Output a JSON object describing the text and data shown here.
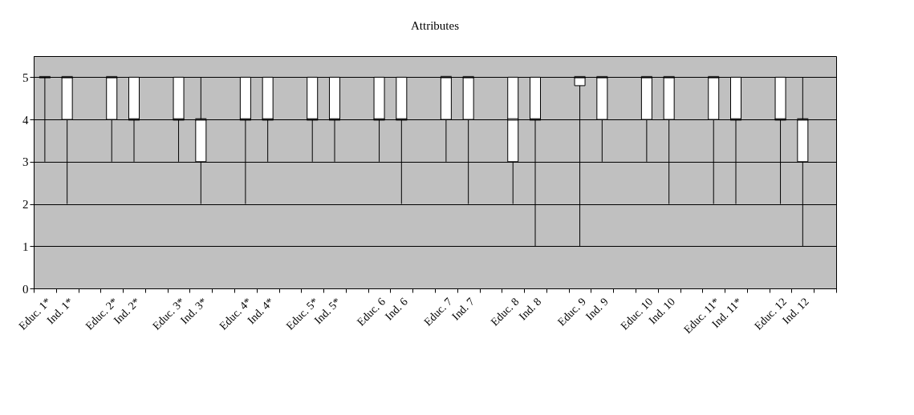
{
  "chart_data": {
    "type": "box",
    "title": "Attributes",
    "categories": [
      "Educ. 1*",
      "Ind. 1*",
      null,
      "Educ. 2*",
      "Ind. 2*",
      null,
      "Educ. 3*",
      "Ind. 3*",
      null,
      "Educ. 4*",
      "Ind. 4*",
      null,
      "Educ. 5*",
      "Ind. 5*",
      null,
      "Educ. 6",
      "Ind. 6",
      null,
      "Educ. 7",
      "Ind. 7",
      null,
      "Educ. 8",
      "Ind. 8",
      null,
      "Educ. 9",
      "Ind. 9",
      null,
      "Educ. 10",
      "Ind. 10",
      null,
      "Educ. 11*",
      "Ind. 11*",
      null,
      "Educ. 12",
      "Ind. 12",
      null
    ],
    "boxes": [
      {
        "low": 3,
        "q1": 5,
        "median": 5,
        "q3": 5,
        "high": 5
      },
      {
        "low": 2,
        "q1": 4,
        "median": 5,
        "q3": 5,
        "high": 5
      },
      null,
      {
        "low": 3,
        "q1": 4,
        "median": 5,
        "q3": 5,
        "high": 5
      },
      {
        "low": 3,
        "q1": 4,
        "median": 4,
        "q3": 5,
        "high": 5
      },
      null,
      {
        "low": 3,
        "q1": 4,
        "median": 4,
        "q3": 5,
        "high": 5
      },
      {
        "low": 2,
        "q1": 3,
        "median": 4,
        "q3": 4,
        "high": 5
      },
      null,
      {
        "low": 2,
        "q1": 4,
        "median": 4,
        "q3": 5,
        "high": 5
      },
      {
        "low": 3,
        "q1": 4,
        "median": 4,
        "q3": 5,
        "high": 5
      },
      null,
      {
        "low": 3,
        "q1": 4,
        "median": 4,
        "q3": 5,
        "high": 5
      },
      {
        "low": 3,
        "q1": 4,
        "median": 4,
        "q3": 5,
        "high": 5
      },
      null,
      {
        "low": 3,
        "q1": 4,
        "median": 4,
        "q3": 5,
        "high": 5
      },
      {
        "low": 2,
        "q1": 4,
        "median": 4,
        "q3": 5,
        "high": 5
      },
      null,
      {
        "low": 3,
        "q1": 4,
        "median": 5,
        "q3": 5,
        "high": 5
      },
      {
        "low": 2,
        "q1": 4,
        "median": 5,
        "q3": 5,
        "high": 5
      },
      null,
      {
        "low": 2,
        "q1": 3,
        "median": 4,
        "q3": 5,
        "high": 5
      },
      {
        "low": 1,
        "q1": 4,
        "median": 4,
        "q3": 5,
        "high": 5
      },
      null,
      {
        "low": 1,
        "q1": 4.8,
        "median": 5,
        "q3": 5,
        "high": 5
      },
      {
        "low": 3,
        "q1": 4,
        "median": 5,
        "q3": 5,
        "high": 5
      },
      null,
      {
        "low": 3,
        "q1": 4,
        "median": 5,
        "q3": 5,
        "high": 5
      },
      {
        "low": 2,
        "q1": 4,
        "median": 5,
        "q3": 5,
        "high": 5
      },
      null,
      {
        "low": 2,
        "q1": 4,
        "median": 5,
        "q3": 5,
        "high": 5
      },
      {
        "low": 2,
        "q1": 4,
        "median": 4,
        "q3": 5,
        "high": 5
      },
      null,
      {
        "low": 2,
        "q1": 4,
        "median": 4,
        "q3": 5,
        "high": 5
      },
      {
        "low": 1,
        "q1": 3,
        "median": 4,
        "q3": 4,
        "high": 5
      },
      null
    ],
    "ylim": [
      0,
      5.5
    ],
    "yticks": [
      0,
      1,
      2,
      3,
      4,
      5
    ],
    "grid": "y"
  }
}
